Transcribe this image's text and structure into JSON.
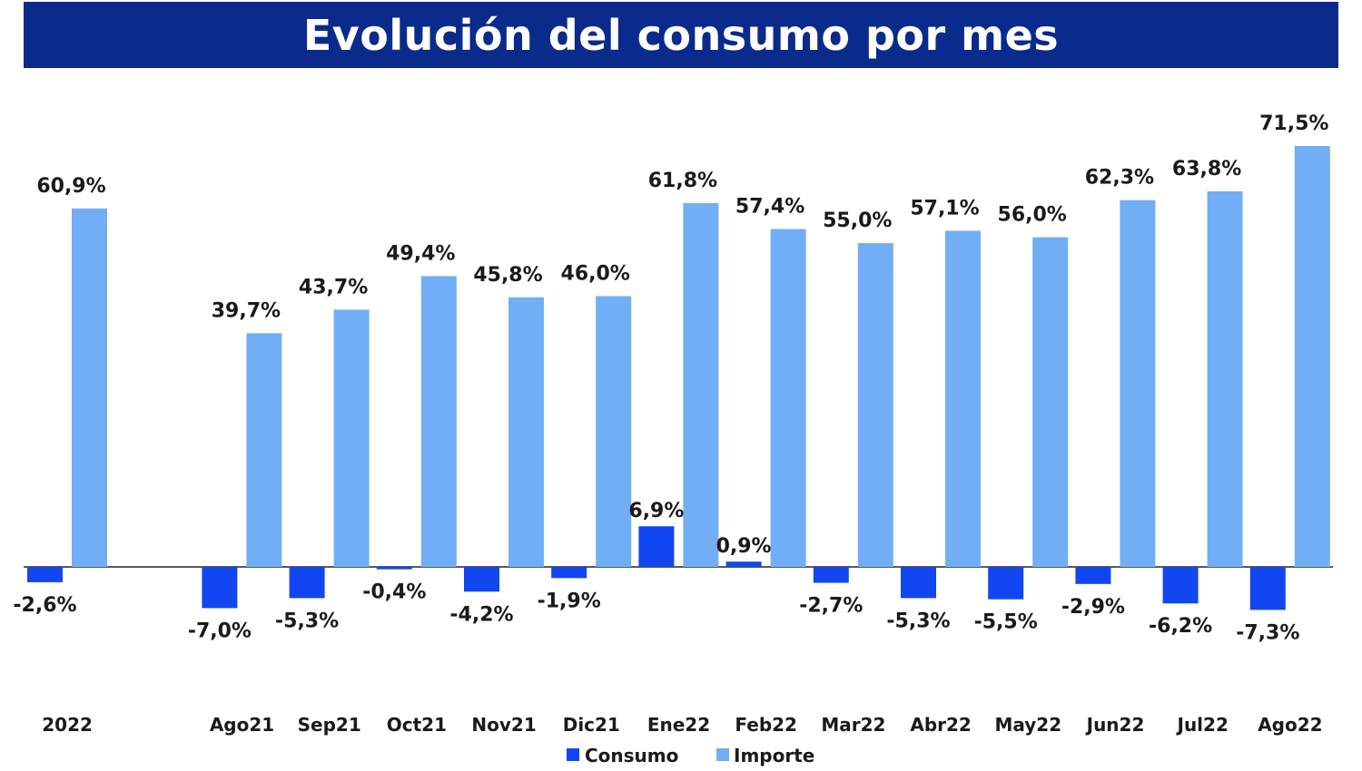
{
  "title": "Evolución del consumo por mes",
  "colors": {
    "title_bg": "#0a2a8c",
    "consumo": "#1246f0",
    "importe": "#72aef5",
    "axis": "#222222"
  },
  "chart_data": {
    "type": "bar",
    "title": "Evolución del consumo por mes",
    "xlabel": "",
    "ylabel": "",
    "ylim": [
      -10,
      75
    ],
    "grid": false,
    "legend": "bottom-center",
    "categories": [
      "2022",
      "",
      "Ago21",
      "Sep21",
      "Oct21",
      "Nov21",
      "Dic21",
      "Ene22",
      "Feb22",
      "Mar22",
      "Abr22",
      "May22",
      "Jun22",
      "Jul22",
      "Ago22"
    ],
    "series": [
      {
        "name": "Consumo",
        "values": [
          -2.6,
          null,
          -7.0,
          -5.3,
          -0.4,
          -4.2,
          -1.9,
          6.9,
          0.9,
          -2.7,
          -5.3,
          -5.5,
          -2.9,
          -6.2,
          -7.3
        ],
        "labels": [
          "-2,6%",
          "",
          "-7,0%",
          "-5,3%",
          "-0,4%",
          "-4,2%",
          "-1,9%",
          "6,9%",
          "0,9%",
          "-2,7%",
          "-5,3%",
          "-5,5%",
          "-2,9%",
          "-6,2%",
          "-7,3%"
        ]
      },
      {
        "name": "Importe",
        "values": [
          60.9,
          null,
          39.7,
          43.7,
          49.4,
          45.8,
          46.0,
          61.8,
          57.4,
          55.0,
          57.1,
          56.0,
          62.3,
          63.8,
          71.5
        ],
        "labels": [
          "60,9%",
          "",
          "39,7%",
          "43,7%",
          "49,4%",
          "45,8%",
          "46,0%",
          "61,8%",
          "57,4%",
          "55,0%",
          "57,1%",
          "56,0%",
          "62,3%",
          "63,8%",
          "71,5%"
        ]
      }
    ]
  }
}
